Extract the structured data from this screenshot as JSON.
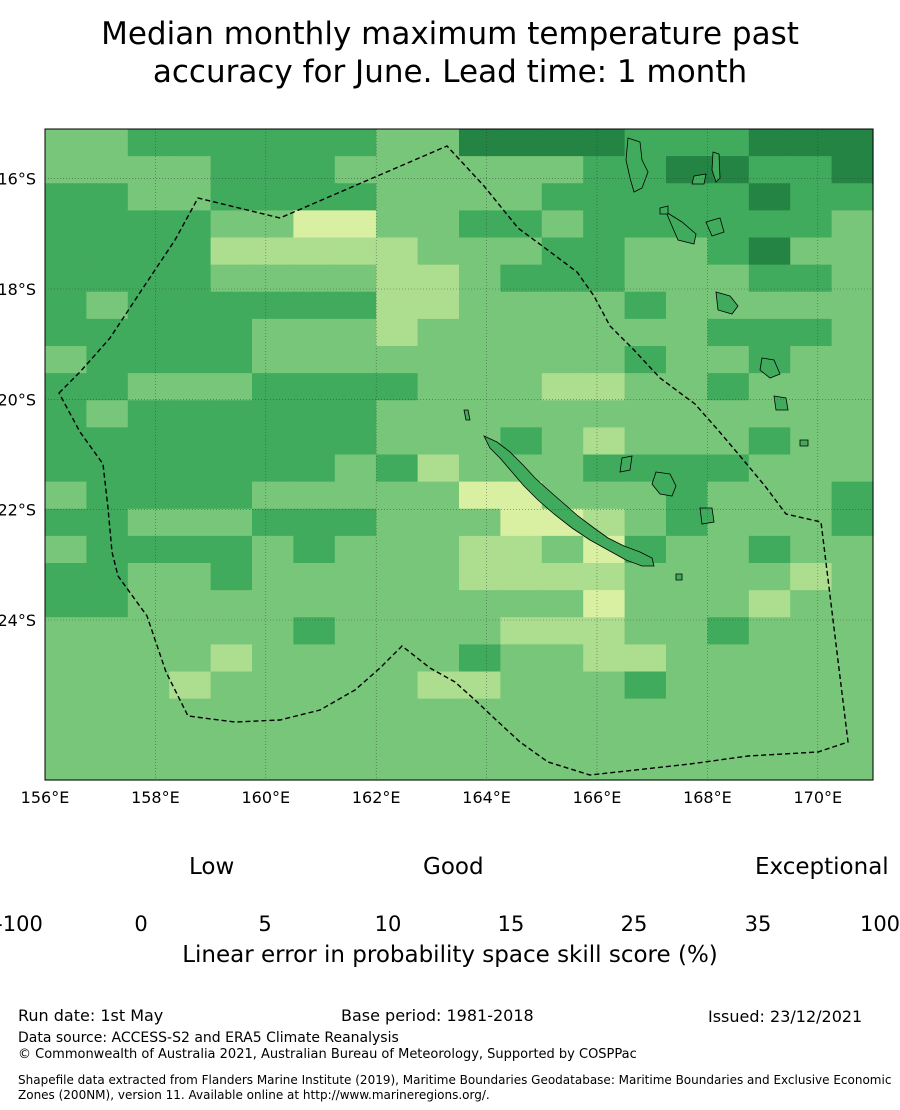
{
  "title_line1": "Median monthly maximum temperature past",
  "title_line2": "accuracy for June. Lead time: 1 month",
  "map": {
    "lon_range": [
      156,
      171
    ],
    "lat_range": [
      -26.9,
      -15.1
    ],
    "x_ticks": [
      "156°E",
      "158°E",
      "160°E",
      "162°E",
      "164°E",
      "166°E",
      "168°E",
      "170°E"
    ],
    "y_ticks": [
      "16°S",
      "18°S",
      "20°S",
      "22°S",
      "24°S"
    ],
    "colors": [
      "#ffffff",
      "#ffffcc",
      "#d9f0a3",
      "#addd8e",
      "#78c679",
      "#41ab5d",
      "#238443"
    ],
    "skill_grid": [
      "44555555446666555666",
      "44445554444445566556",
      "55445555444455555655",
      "55554422445545555554",
      "55553333344455445644",
      "55554444334555444554",
      "54555555334444544444",
      "55555444344444445554",
      "45555444444444544544",
      "55444555544433445444",
      "54555555444444444444",
      "55555555444543444544",
      "55555554534445555444",
      "45555444442244454445",
      "55444555444223454445",
      "45555454443342544544",
      "55445444443333444434",
      "55444444444442444344",
      "44444454444333445444",
      "44443444445443344444",
      "44434444433444544444",
      "44444444444444444444",
      "44444444444444444444",
      "44444444444444444444"
    ]
  },
  "colorbar": {
    "categories": [
      "Low",
      "Good",
      "Exceptional"
    ],
    "ticks": [
      "-100",
      "0",
      "5",
      "10",
      "15",
      "25",
      "35",
      "100"
    ],
    "colors": [
      "#ffffff",
      "#ffffcc",
      "#d9f0a3",
      "#addd8e",
      "#78c679",
      "#41ab5d",
      "#238443"
    ],
    "label": "Linear error in probability space skill score (%)"
  },
  "footer": {
    "run_date": "Run date: 1st May",
    "base_period": "Base period: 1981-2018",
    "issued": "Issued: 23/12/2021",
    "data_source": "Data source: ACCESS-S2 and ERA5 Climate Reanalysis",
    "copyright": "© Commonwealth of Australia 2021, Australian Bureau of Meteorology, Supported by COSPPac",
    "shapefile": "Shapefile data extracted from Flanders Marine Institute (2019), Maritime Boundaries Geodatabase: Maritime Boundaries and Exclusive Economic Zones (200NM), version 11. Available online at http://www.marineregions.org/."
  }
}
